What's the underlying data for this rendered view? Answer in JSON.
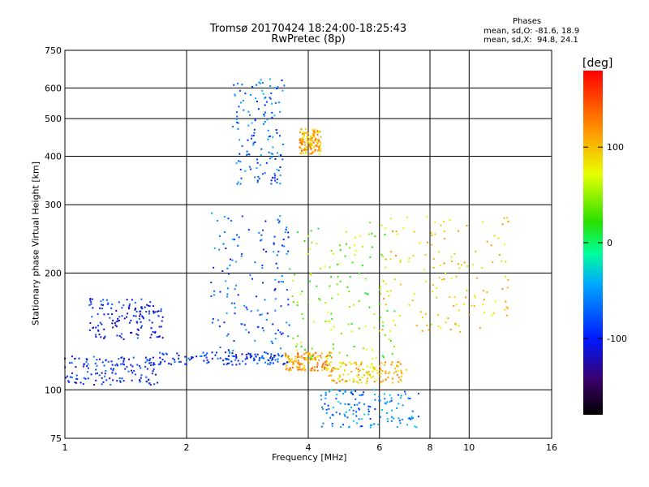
{
  "header": {
    "title": "Tromsø 20170424 18:24:00-18:25:43",
    "subtitle": "RwPretec (8p)"
  },
  "stats": {
    "heading": "Phases",
    "line_o": "mean, sd,O: -81.6, 18.9",
    "line_x": "mean, sd,X:  94.8, 24.1"
  },
  "colorbar": {
    "label": "[deg]",
    "ticks": [
      {
        "label": "100",
        "value": 100
      },
      {
        "label": "0",
        "value": 0
      },
      {
        "label": "-100",
        "value": -100
      }
    ],
    "range": [
      -180,
      180
    ]
  },
  "chart_data": {
    "type": "scatter",
    "title": "Tromsø 20170424 18:24:00-18:25:43",
    "subtitle": "RwPretec (8p)",
    "xlabel": "Frequency [MHz]",
    "ylabel": "Stationary phase Virtual Height [km]",
    "xscale": "log",
    "yscale": "log",
    "xlim": [
      1,
      16
    ],
    "ylim": [
      75,
      750
    ],
    "grid": true,
    "xticks": [
      "1",
      "2",
      "4",
      "6",
      "8",
      "10",
      "16"
    ],
    "xtick_values": [
      1,
      2,
      4,
      6,
      8,
      10,
      16
    ],
    "yticks": [
      "75",
      "100",
      "200",
      "300",
      "400",
      "500",
      "600",
      "750"
    ],
    "ytick_values": [
      75,
      100,
      200,
      300,
      400,
      500,
      600,
      750
    ],
    "color_by": "phase [deg]",
    "clusters": [
      {
        "x_range": [
          1.0,
          1.7
        ],
        "y_range": [
          103,
          122
        ],
        "phase": -95
      },
      {
        "x_range": [
          1.15,
          1.75
        ],
        "y_range": [
          135,
          172
        ],
        "phase": -100
      },
      {
        "x_range": [
          1.7,
          3.6
        ],
        "y_range": [
          116,
          125
        ],
        "phase": -90
      },
      {
        "x_range": [
          2.3,
          3.6
        ],
        "y_range": [
          125,
          290
        ],
        "phase": -75
      },
      {
        "x_range": [
          2.6,
          3.5
        ],
        "y_range": [
          335,
          640
        ],
        "phase": -70
      },
      {
        "x_range": [
          3.8,
          4.3
        ],
        "y_range": [
          405,
          470
        ],
        "phase": 105
      },
      {
        "x_range": [
          3.5,
          4.6
        ],
        "y_range": [
          112,
          125
        ],
        "phase": 110
      },
      {
        "x_range": [
          3.6,
          6.6
        ],
        "y_range": [
          120,
          270
        ],
        "phase": 40
      },
      {
        "x_range": [
          4.4,
          7.0
        ],
        "y_range": [
          104,
          118
        ],
        "phase": 95
      },
      {
        "x_range": [
          4.3,
          7.5
        ],
        "y_range": [
          80,
          100
        ],
        "phase": -60
      },
      {
        "x_range": [
          6.0,
          12.5
        ],
        "y_range": [
          140,
          280
        ],
        "phase": 90
      }
    ]
  }
}
